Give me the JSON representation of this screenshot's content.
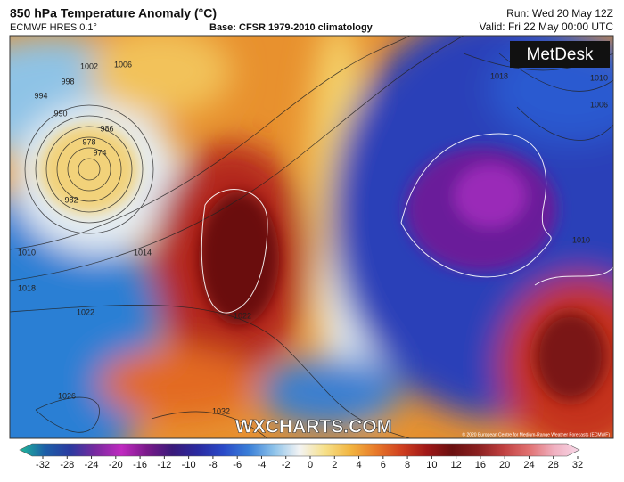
{
  "header": {
    "title": "850 hPa Temperature Anomaly (°C)",
    "model": "ECMWF HRES 0.1°",
    "base": "Base: CFSR 1979-2010 climatology",
    "run": "Run: Wed 20 May 12Z",
    "valid": "Valid: Fri 22 May 00:00 UTC"
  },
  "map": {
    "brand": "MetDesk",
    "watermark": "WXCHARTS.COM",
    "copyright": "© 2020 European Centre for Medium-Range Weather Forecasts (ECMWF)",
    "isobar_labels": [
      "1002",
      "1006",
      "998",
      "994",
      "990",
      "986",
      "978",
      "974",
      "982",
      "1010",
      "1014",
      "1018",
      "1022",
      "1022",
      "1026",
      "1032",
      "1018",
      "1010",
      "1006",
      "1010"
    ]
  },
  "colorbar": {
    "ticks": [
      -32,
      -28,
      -24,
      -20,
      -16,
      -12,
      -10,
      -8,
      -6,
      -4,
      -2,
      0,
      2,
      4,
      6,
      8,
      10,
      12,
      16,
      20,
      24,
      28,
      32
    ],
    "colors": [
      "#1fb89a",
      "#1d5fa8",
      "#2b3aa0",
      "#7a2aa0",
      "#c02ac0",
      "#7a1a8a",
      "#3a1a7a",
      "#2a2aa0",
      "#2a4ac8",
      "#3a7fd8",
      "#8ec3ea",
      "#f4f4f4",
      "#f6e08a",
      "#f2b540",
      "#e87a2a",
      "#d04020",
      "#a01818",
      "#6a1010",
      "#8a2020",
      "#c04040",
      "#e07070",
      "#f0b0c0",
      "#f8d8e8"
    ]
  }
}
